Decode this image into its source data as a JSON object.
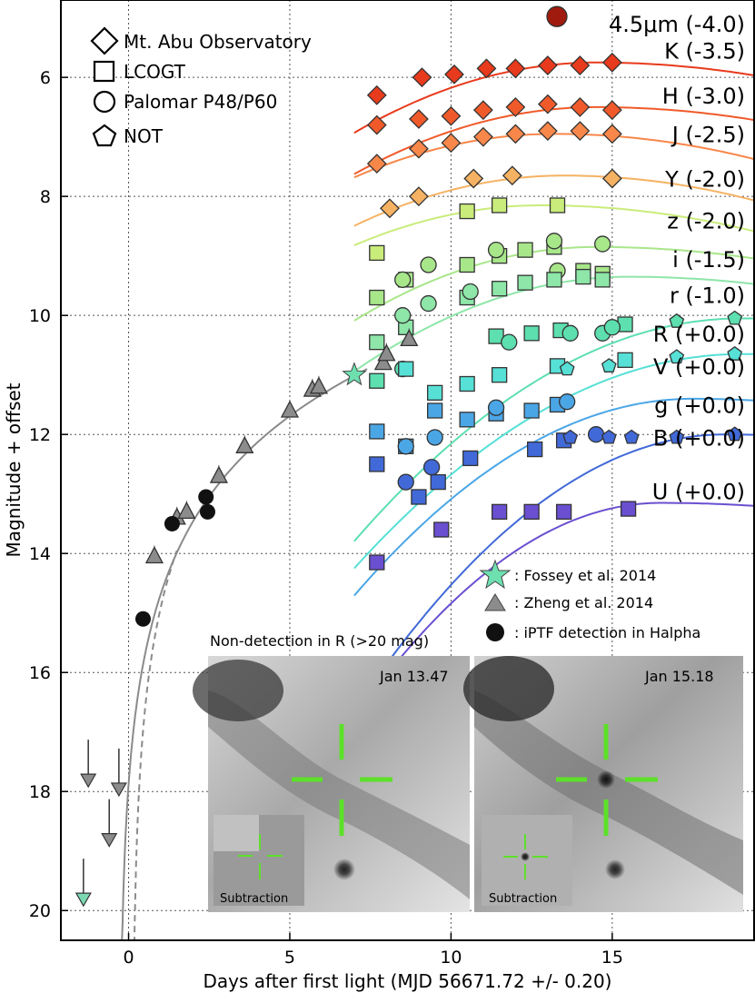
{
  "chart_data": {
    "type": "scatter",
    "xlabel": "Days after first light (MJD 56671.72 +/- 0.20)",
    "ylabel": "Magnitude + offset",
    "xlim": [
      -2.1,
      19.4
    ],
    "ylim": [
      20.5,
      4.7
    ],
    "y_inverted": true,
    "xticks": [
      0,
      5,
      10,
      15
    ],
    "yticks": [
      6,
      8,
      10,
      12,
      14,
      16,
      18,
      20
    ],
    "grid": true,
    "instrument_legend": {
      "placement": "top-left",
      "entries": [
        {
          "marker": "diamond",
          "label": "Mt. Abu Observatory"
        },
        {
          "marker": "square",
          "label": "LCOGT"
        },
        {
          "marker": "circle",
          "label": "Palomar P48/P60"
        },
        {
          "marker": "pentagon",
          "label": "NOT"
        }
      ]
    },
    "reference_legend": {
      "placement": "lower-right",
      "entries": [
        {
          "marker": "star",
          "color": "#6ee0b0",
          "label": ": Fossey et al. 2014"
        },
        {
          "marker": "triangle",
          "color": "#8c8c8c",
          "label": ": Zheng et al. 2014"
        },
        {
          "marker": "circle",
          "color": "#111111",
          "label": ": iPTF detection in Halpha"
        }
      ]
    },
    "series": [
      {
        "name": "4.5μm (-4.0)",
        "color": "#a01a0e",
        "label_y": 5.1,
        "model": null,
        "points": []
      },
      {
        "name": "K (-3.5)",
        "color": "#e83a1c",
        "label_y": 5.55,
        "model": {
          "x0": 7.0,
          "x1": 19.4,
          "peak_x": 14.5,
          "peak_y": 5.75,
          "a": 0.021,
          "b": 0.009
        },
        "points": [
          {
            "m": "d",
            "x": 7.7,
            "y": 6.3
          },
          {
            "m": "d",
            "x": 9.1,
            "y": 6.0
          },
          {
            "m": "d",
            "x": 10.1,
            "y": 5.95
          },
          {
            "m": "d",
            "x": 11.1,
            "y": 5.85
          },
          {
            "m": "d",
            "x": 12.0,
            "y": 5.85
          },
          {
            "m": "d",
            "x": 13.0,
            "y": 5.8
          },
          {
            "m": "d",
            "x": 14.0,
            "y": 5.8
          },
          {
            "m": "d",
            "x": 15.0,
            "y": 5.75
          }
        ]
      },
      {
        "name": "H (-3.0)",
        "color": "#f05a2a",
        "label_y": 6.3,
        "model": {
          "x0": 7.0,
          "x1": 19.4,
          "peak_x": 14.5,
          "peak_y": 6.5,
          "a": 0.02,
          "b": 0.009
        },
        "points": [
          {
            "m": "d",
            "x": 7.7,
            "y": 6.8
          },
          {
            "m": "d",
            "x": 9.0,
            "y": 6.7
          },
          {
            "m": "d",
            "x": 10.0,
            "y": 6.65
          },
          {
            "m": "d",
            "x": 11.0,
            "y": 6.55
          },
          {
            "m": "d",
            "x": 12.0,
            "y": 6.5
          },
          {
            "m": "d",
            "x": 13.0,
            "y": 6.45
          },
          {
            "m": "d",
            "x": 14.0,
            "y": 6.5
          },
          {
            "m": "d",
            "x": 15.0,
            "y": 6.55
          }
        ]
      },
      {
        "name": "J (-2.5)",
        "color": "#f8874a",
        "label_y": 6.95,
        "model": {
          "x0": 7.0,
          "x1": 19.4,
          "peak_x": 13.2,
          "peak_y": 6.95,
          "a": 0.019,
          "b": 0.011
        },
        "points": [
          {
            "m": "d",
            "x": 7.7,
            "y": 7.45
          },
          {
            "m": "d",
            "x": 9.0,
            "y": 7.2
          },
          {
            "m": "d",
            "x": 10.0,
            "y": 7.1
          },
          {
            "m": "d",
            "x": 11.0,
            "y": 7.0
          },
          {
            "m": "d",
            "x": 12.0,
            "y": 6.95
          },
          {
            "m": "d",
            "x": 13.0,
            "y": 6.9
          },
          {
            "m": "d",
            "x": 14.0,
            "y": 6.9
          },
          {
            "m": "d",
            "x": 15.0,
            "y": 6.95
          }
        ]
      },
      {
        "name": "Y (-2.0)",
        "color": "#f5b262",
        "label_y": 7.7,
        "model": {
          "x0": 7.0,
          "x1": 19.4,
          "peak_x": 13.5,
          "peak_y": 7.65,
          "a": 0.02,
          "b": 0.012
        },
        "points": [
          {
            "m": "d",
            "x": 8.1,
            "y": 8.2
          },
          {
            "m": "d",
            "x": 9.0,
            "y": 8.0
          },
          {
            "m": "d",
            "x": 10.7,
            "y": 7.7
          },
          {
            "m": "d",
            "x": 11.9,
            "y": 7.65
          },
          {
            "m": "d",
            "x": 15.0,
            "y": 7.7
          }
        ]
      },
      {
        "name": "z (-2.0)",
        "color": "#c9ec7a",
        "label_y": 8.4,
        "model": {
          "x0": 7.0,
          "x1": 19.4,
          "peak_x": 12.8,
          "peak_y": 8.15,
          "a": 0.02,
          "b": 0.01
        },
        "points": [
          {
            "m": "s",
            "x": 7.7,
            "y": 8.95
          },
          {
            "m": "s",
            "x": 10.5,
            "y": 8.25
          },
          {
            "m": "s",
            "x": 11.5,
            "y": 8.15
          },
          {
            "m": "s",
            "x": 13.3,
            "y": 8.15
          }
        ]
      },
      {
        "name": "i (-1.5)",
        "color": "#a8e68a",
        "label_y": 9.05,
        "model": {
          "x0": 7.0,
          "x1": 19.4,
          "peak_x": 14.5,
          "peak_y": 8.85,
          "a": 0.022,
          "b": 0.008
        },
        "points": [
          {
            "m": "s",
            "x": 7.7,
            "y": 9.7
          },
          {
            "m": "s",
            "x": 8.6,
            "y": 9.4
          },
          {
            "m": "s",
            "x": 10.5,
            "y": 9.15
          },
          {
            "m": "s",
            "x": 11.5,
            "y": 9.0
          },
          {
            "m": "s",
            "x": 12.3,
            "y": 8.9
          },
          {
            "m": "s",
            "x": 13.2,
            "y": 8.85
          },
          {
            "m": "s",
            "x": 14.1,
            "y": 9.25
          },
          {
            "m": "s",
            "x": 14.7,
            "y": 9.3
          },
          {
            "m": "c",
            "x": 8.5,
            "y": 9.4
          },
          {
            "m": "c",
            "x": 9.3,
            "y": 9.15
          },
          {
            "m": "c",
            "x": 11.4,
            "y": 8.9
          },
          {
            "m": "c",
            "x": 13.2,
            "y": 8.75
          },
          {
            "m": "c",
            "x": 14.7,
            "y": 8.8
          },
          {
            "m": "c",
            "x": 13.3,
            "y": 9.25
          }
        ]
      },
      {
        "name": "r (-1.0)",
        "color": "#8ee6a8",
        "label_y": 9.65,
        "model": {
          "x0": 7.0,
          "x1": 19.4,
          "peak_x": 15.5,
          "peak_y": 9.35,
          "a": 0.022,
          "b": 0.008
        },
        "points": [
          {
            "m": "s",
            "x": 7.7,
            "y": 10.45
          },
          {
            "m": "s",
            "x": 8.6,
            "y": 10.2
          },
          {
            "m": "s",
            "x": 10.5,
            "y": 9.7
          },
          {
            "m": "s",
            "x": 11.5,
            "y": 9.55
          },
          {
            "m": "s",
            "x": 12.3,
            "y": 9.45
          },
          {
            "m": "s",
            "x": 13.2,
            "y": 9.4
          },
          {
            "m": "s",
            "x": 14.1,
            "y": 9.35
          },
          {
            "m": "s",
            "x": 14.7,
            "y": 9.4
          },
          {
            "m": "c",
            "x": 8.5,
            "y": 10.0
          },
          {
            "m": "c",
            "x": 9.3,
            "y": 9.8
          },
          {
            "m": "c",
            "x": 10.6,
            "y": 9.6
          }
        ]
      },
      {
        "name": "R (+0.0)",
        "color": "#5ddfb0",
        "label_y": 10.3,
        "model": {
          "x0": 7.0,
          "x1": 19.4,
          "peak_x": 19.0,
          "peak_y": 10.05,
          "a": 0.026,
          "b": 0.008
        },
        "points": [
          {
            "m": "s",
            "x": 7.7,
            "y": 11.1
          },
          {
            "m": "s",
            "x": 11.4,
            "y": 10.35
          },
          {
            "m": "s",
            "x": 12.5,
            "y": 10.3
          },
          {
            "m": "s",
            "x": 13.4,
            "y": 10.25
          },
          {
            "m": "s",
            "x": 15.4,
            "y": 10.15
          },
          {
            "m": "c",
            "x": 8.5,
            "y": 10.9
          },
          {
            "m": "c",
            "x": 11.8,
            "y": 10.45
          },
          {
            "m": "c",
            "x": 13.7,
            "y": 10.3
          },
          {
            "m": "c",
            "x": 14.7,
            "y": 10.3
          },
          {
            "m": "c",
            "x": 15.0,
            "y": 10.2
          },
          {
            "m": "p",
            "x": 17.0,
            "y": 10.1
          },
          {
            "m": "p",
            "x": 18.8,
            "y": 10.05
          }
        ]
      },
      {
        "name": "V (+0.0)",
        "color": "#56e0d6",
        "label_y": 10.85,
        "model": {
          "x0": 7.0,
          "x1": 19.4,
          "peak_x": 19.0,
          "peak_y": 10.65,
          "a": 0.025,
          "b": 0.008
        },
        "points": [
          {
            "m": "s",
            "x": 8.6,
            "y": 10.9
          },
          {
            "m": "s",
            "x": 9.5,
            "y": 11.3
          },
          {
            "m": "s",
            "x": 10.5,
            "y": 11.15
          },
          {
            "m": "s",
            "x": 11.5,
            "y": 11.0
          },
          {
            "m": "s",
            "x": 13.3,
            "y": 10.85
          },
          {
            "m": "s",
            "x": 15.4,
            "y": 10.75
          },
          {
            "m": "p",
            "x": 13.6,
            "y": 10.9
          },
          {
            "m": "p",
            "x": 14.9,
            "y": 10.85
          },
          {
            "m": "p",
            "x": 17.0,
            "y": 10.7
          },
          {
            "m": "p",
            "x": 18.8,
            "y": 10.65
          }
        ]
      },
      {
        "name": "g (+0.0)",
        "color": "#4ba6e6",
        "label_y": 11.5,
        "model": {
          "x0": 7.0,
          "x1": 19.4,
          "peak_x": 17.5,
          "peak_y": 11.4,
          "a": 0.03,
          "b": 0.008
        },
        "points": [
          {
            "m": "s",
            "x": 7.7,
            "y": 11.95
          },
          {
            "m": "s",
            "x": 8.6,
            "y": 12.2
          },
          {
            "m": "s",
            "x": 9.5,
            "y": 11.6
          },
          {
            "m": "s",
            "x": 10.5,
            "y": 11.75
          },
          {
            "m": "s",
            "x": 11.4,
            "y": 11.65
          },
          {
            "m": "s",
            "x": 12.5,
            "y": 11.6
          },
          {
            "m": "s",
            "x": 13.3,
            "y": 11.5
          },
          {
            "m": "c",
            "x": 8.6,
            "y": 12.2
          },
          {
            "m": "c",
            "x": 9.5,
            "y": 12.05
          },
          {
            "m": "c",
            "x": 11.4,
            "y": 11.55
          },
          {
            "m": "c",
            "x": 13.6,
            "y": 11.45
          }
        ]
      },
      {
        "name": "B (+0.0)",
        "color": "#4169d8",
        "label_y": 12.05,
        "model": {
          "x0": 7.5,
          "x1": 19.4,
          "peak_x": 18.5,
          "peak_y": 12.0,
          "a": 0.035,
          "b": 0.008
        },
        "points": [
          {
            "m": "s",
            "x": 7.7,
            "y": 12.5
          },
          {
            "m": "s",
            "x": 9.0,
            "y": 13.05
          },
          {
            "m": "s",
            "x": 9.6,
            "y": 12.8
          },
          {
            "m": "s",
            "x": 10.6,
            "y": 12.4
          },
          {
            "m": "s",
            "x": 12.6,
            "y": 12.25
          },
          {
            "m": "s",
            "x": 13.5,
            "y": 12.1
          },
          {
            "m": "c",
            "x": 8.6,
            "y": 12.8
          },
          {
            "m": "c",
            "x": 9.4,
            "y": 12.55
          },
          {
            "m": "c",
            "x": 14.5,
            "y": 12.0
          },
          {
            "m": "p",
            "x": 13.7,
            "y": 12.05
          },
          {
            "m": "p",
            "x": 14.9,
            "y": 12.05
          },
          {
            "m": "p",
            "x": 15.6,
            "y": 12.05
          },
          {
            "m": "p",
            "x": 17.0,
            "y": 12.05
          },
          {
            "m": "p",
            "x": 18.8,
            "y": 12.0
          }
        ]
      },
      {
        "name": "U (+0.0)",
        "color": "#6a4fd0",
        "label_y": 12.95,
        "model": {
          "x0": 7.7,
          "x1": 19.4,
          "peak_x": 16.5,
          "peak_y": 13.15,
          "a": 0.04,
          "b": 0.006
        },
        "points": [
          {
            "m": "s",
            "x": 7.7,
            "y": 14.15
          },
          {
            "m": "s",
            "x": 9.7,
            "y": 13.6
          },
          {
            "m": "s",
            "x": 11.5,
            "y": 13.3
          },
          {
            "m": "s",
            "x": 12.5,
            "y": 13.3
          },
          {
            "m": "s",
            "x": 13.5,
            "y": 13.3
          },
          {
            "m": "s",
            "x": 15.5,
            "y": 13.25
          }
        ]
      }
    ],
    "early_data": {
      "fossey": [
        {
          "x": 7.0,
          "y": 11.0
        }
      ],
      "zheng": [
        {
          "x": 0.8,
          "y": 14.05
        },
        {
          "x": 1.5,
          "y": 13.4
        },
        {
          "x": 1.8,
          "y": 13.3
        },
        {
          "x": 2.8,
          "y": 12.7
        },
        {
          "x": 3.6,
          "y": 12.2
        },
        {
          "x": 5.0,
          "y": 11.6
        },
        {
          "x": 5.7,
          "y": 11.25
        },
        {
          "x": 5.9,
          "y": 11.2
        },
        {
          "x": 7.9,
          "y": 10.8
        },
        {
          "x": 8.0,
          "y": 10.65
        },
        {
          "x": 8.7,
          "y": 10.4
        }
      ],
      "iptf": [
        {
          "x": 0.45,
          "y": 15.1
        },
        {
          "x": 1.35,
          "y": 13.5
        },
        {
          "x": 2.4,
          "y": 13.05
        },
        {
          "x": 2.45,
          "y": 13.3
        }
      ],
      "upper_limits": [
        {
          "x": -1.25,
          "y": 17.8,
          "fill": "#8c8c8c"
        },
        {
          "x": -0.3,
          "y": 17.95,
          "fill": "#8c8c8c"
        },
        {
          "x": -0.6,
          "y": 18.8,
          "fill": "#8c8c8c"
        },
        {
          "x": -1.4,
          "y": 19.8,
          "fill": "#7ad9b0"
        }
      ],
      "early_model_solid": {
        "t0": -0.28,
        "x_end": 7.4,
        "y_end": 10.9
      },
      "early_model_dashed": {
        "t0": 0.12,
        "x_end": 1.5,
        "y_end": 13.95
      }
    },
    "inset": {
      "title": "Non-detection in R (>20 mag)",
      "panels": [
        {
          "date": "Jan 13.47",
          "subtraction_label": "Subtraction"
        },
        {
          "date": "Jan 15.18",
          "subtraction_label": "Subtraction"
        }
      ]
    }
  }
}
